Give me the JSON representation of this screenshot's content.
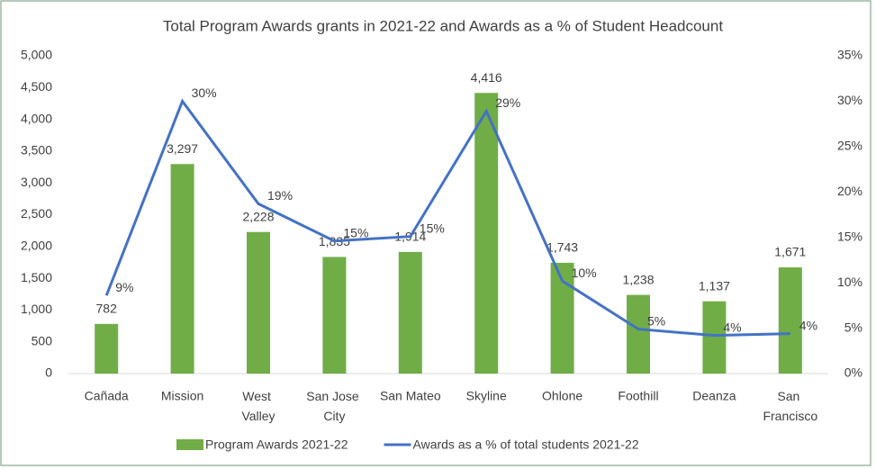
{
  "chart_data": {
    "type": "bar",
    "title": "Total Program Awards grants in 2021-22 and Awards as a % of Student Headcount",
    "categories": [
      "Cañada",
      "Mission",
      "West Valley",
      "San Jose City",
      "San Mateo",
      "Skyline",
      "Ohlone",
      "Foothill",
      "Deanza",
      "San Francisco"
    ],
    "series": [
      {
        "name": "Program Awards 2021-22",
        "color": "#70ad47",
        "values": [
          782,
          3297,
          2228,
          1835,
          1914,
          4416,
          1743,
          1238,
          1137,
          1671
        ],
        "value_labels": [
          "782",
          "3,297",
          "2,228",
          "1,835",
          "1,914",
          "4,416",
          "1,743",
          "1,238",
          "1,137",
          "1,671"
        ]
      },
      {
        "name": "Awards as a % of total students 2021-22",
        "color": "#4472c4",
        "type": "line",
        "axis": "y2",
        "values": [
          8.6,
          30,
          18.7,
          14.6,
          15.1,
          28.9,
          10.2,
          4.9,
          4.2,
          4.4
        ],
        "value_labels": [
          "9%",
          "30%",
          "19%",
          "15%",
          "15%",
          "29%",
          "10%",
          "5%",
          "4%",
          "4%"
        ]
      }
    ],
    "ylim": [
      0,
      5000
    ],
    "yticks": [
      0,
      500,
      {
        "value": 1000,
        "label": "1,000"
      },
      {
        "value": 1500,
        "label": "1,500"
      },
      {
        "value": 2000,
        "label": "2,000"
      },
      {
        "value": 2500,
        "label": "2,500"
      },
      {
        "value": 3000,
        "label": "3,000"
      },
      {
        "value": 3500,
        "label": "3,500"
      },
      {
        "value": 4000,
        "label": "4,000"
      },
      {
        "value": 4500,
        "label": "4,500"
      },
      {
        "value": 5000,
        "label": "5,000"
      }
    ],
    "y2lim": [
      0,
      35
    ],
    "y2ticks": [
      {
        "value": 0,
        "label": "0%"
      },
      {
        "value": 5,
        "label": "5%"
      },
      {
        "value": 10,
        "label": "10%"
      },
      {
        "value": 15,
        "label": "15%"
      },
      {
        "value": 20,
        "label": "20%"
      },
      {
        "value": 25,
        "label": "25%"
      },
      {
        "value": 30,
        "label": "30%"
      },
      {
        "value": 35,
        "label": "35%"
      }
    ],
    "grid": false,
    "legend": "bottom"
  }
}
